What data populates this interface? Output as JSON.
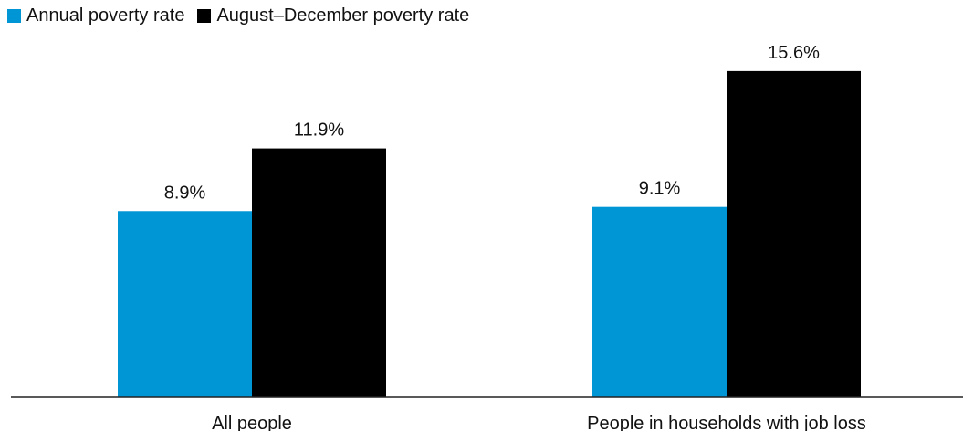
{
  "chart_data": {
    "type": "bar",
    "categories": [
      "All people",
      "People in households with job loss"
    ],
    "series": [
      {
        "name": "Annual poverty rate",
        "values": [
          8.9,
          9.1
        ],
        "labels": [
          "8.9%",
          "9.1%"
        ],
        "color": "#0096d6"
      },
      {
        "name": "August–December poverty rate",
        "values": [
          11.9,
          15.6
        ],
        "labels": [
          "11.9%",
          "15.6%"
        ],
        "color": "#000000"
      }
    ],
    "ylim": [
      0,
      16.6
    ],
    "grid": false,
    "legend_position": "top-left"
  }
}
